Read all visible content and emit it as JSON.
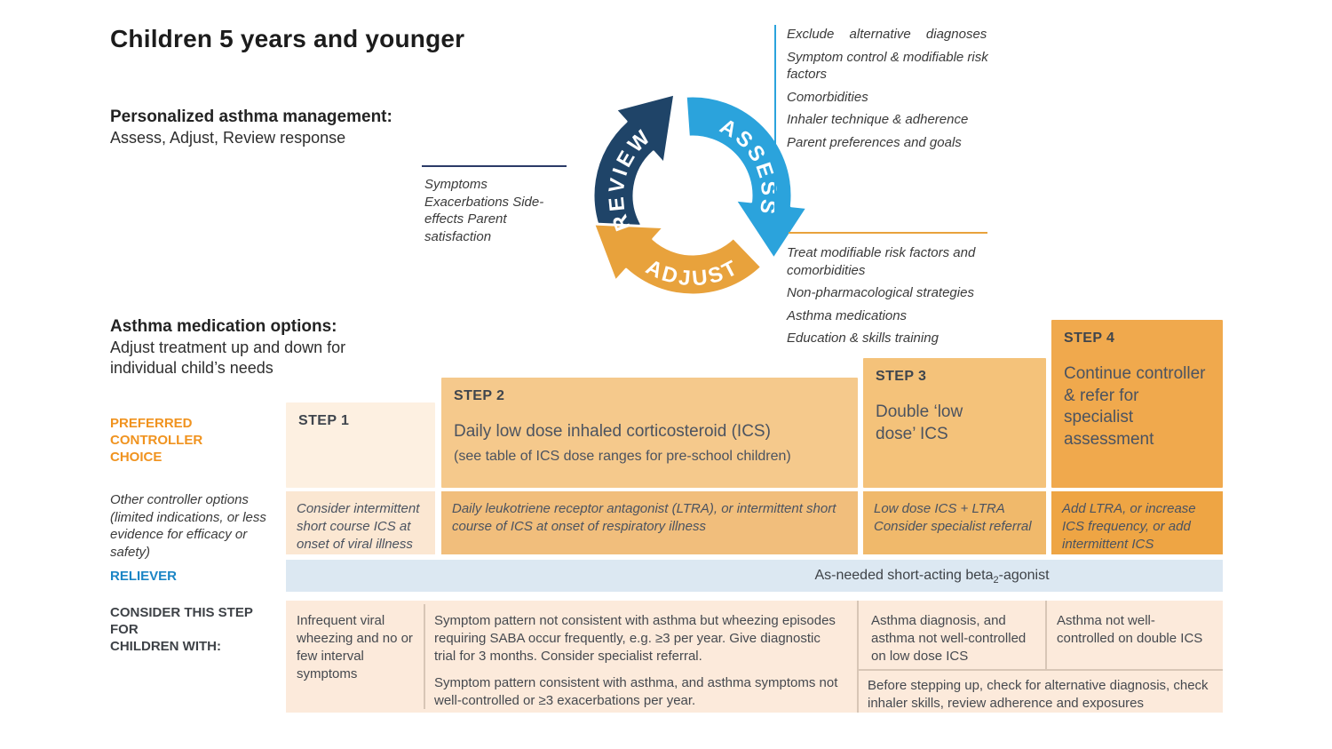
{
  "title": "Children 5 years and younger",
  "sections": {
    "personalized": {
      "heading": "Personalized asthma management:",
      "sub": "Assess, Adjust, Review response"
    },
    "medication": {
      "heading": "Asthma medication options:",
      "sub": "Adjust treatment up and down for individual child’s needs"
    }
  },
  "cycle": {
    "labels": {
      "assess": "ASSESS",
      "adjust": "ADJUST",
      "review": "REVIEW"
    },
    "colors": {
      "assess": "#2ba3dc",
      "adjust": "#e8a23c",
      "review": "#1f4468"
    },
    "assess_notes": [
      "Exclude alternative diagnoses",
      "Symptom control & modifiable risk factors",
      "Comorbidities",
      "Inhaler technique & adherence",
      "Parent preferences and goals"
    ],
    "review_notes": "Symptoms\nExacerbations Side-\neffects Parent\nsatisfaction",
    "adjust_notes": [
      "Treat modifiable risk factors and comorbidities",
      "Non-pharmacological strategies",
      "Asthma medications",
      "Education & skills training"
    ]
  },
  "table": {
    "row_labels": {
      "preferred": "PREFERRED CONTROLLER CHOICE",
      "other": "Other controller options (limited indications, or less evidence for efficacy or safety)",
      "reliever": "RELIEVER",
      "consider": [
        "CONSIDER THIS STEP",
        "FOR",
        "CHILDREN WITH:"
      ]
    },
    "steps": [
      {
        "label": "STEP 1",
        "main": "",
        "sub": ""
      },
      {
        "label": "STEP 2",
        "main": "Daily low dose inhaled corticosteroid (ICS)",
        "sub": "(see table of ICS dose ranges for pre-school children)"
      },
      {
        "label": "STEP 3",
        "main": "Double ‘low dose’ ICS",
        "sub": ""
      },
      {
        "label": "STEP 4",
        "main": "Continue controller & refer for specialist assessment",
        "sub": ""
      }
    ],
    "other_row": [
      "Consider intermittent short course ICS at onset of viral illness",
      "Daily leukotriene receptor antagonist (LTRA), or intermittent short course of ICS at onset of respiratory illness",
      "Low dose ICS + LTRA\nConsider specialist referral",
      "Add LTRA, or increase ICS frequency, or add intermittent ICS"
    ],
    "reliever": {
      "pre": "As-needed  short-acting  beta",
      "sub": "2",
      "post": "-agonist"
    },
    "consider_row": {
      "step1": "Infrequent viral wheezing and no or few interval symptoms",
      "step2_p1": "Symptom pattern not consistent with asthma but wheezing episodes requiring SABA occur frequently, e.g. ≥3 per year. Give diagnostic trial for 3 months. Consider specialist referral.",
      "step2_p2": "Symptom pattern consistent with asthma, and asthma symptoms not well-controlled or ≥3 exacerbations per year.",
      "step3": "Asthma diagnosis, and asthma not well-controlled on low dose ICS",
      "step4": "Asthma not well-controlled on double ICS",
      "step34_note": "Before stepping up, check for alternative diagnosis, check inhaler skills, review adherence and exposures"
    }
  },
  "palette": {
    "step1_bg": "#fdf0e1",
    "step2_bg": "#f5c98c",
    "step3_bg": "#f4c27a",
    "step4_bg": "#f0a94d",
    "row2_1": "#fbe7d2",
    "row2_2": "#f1be7c",
    "row2_3": "#f0b96b",
    "row2_4": "#eea544",
    "reliever_band": "#dce8f2",
    "bottom_band": "#fceadb",
    "accent_orange": "#f0931f",
    "accent_blue": "#1b85c5"
  }
}
